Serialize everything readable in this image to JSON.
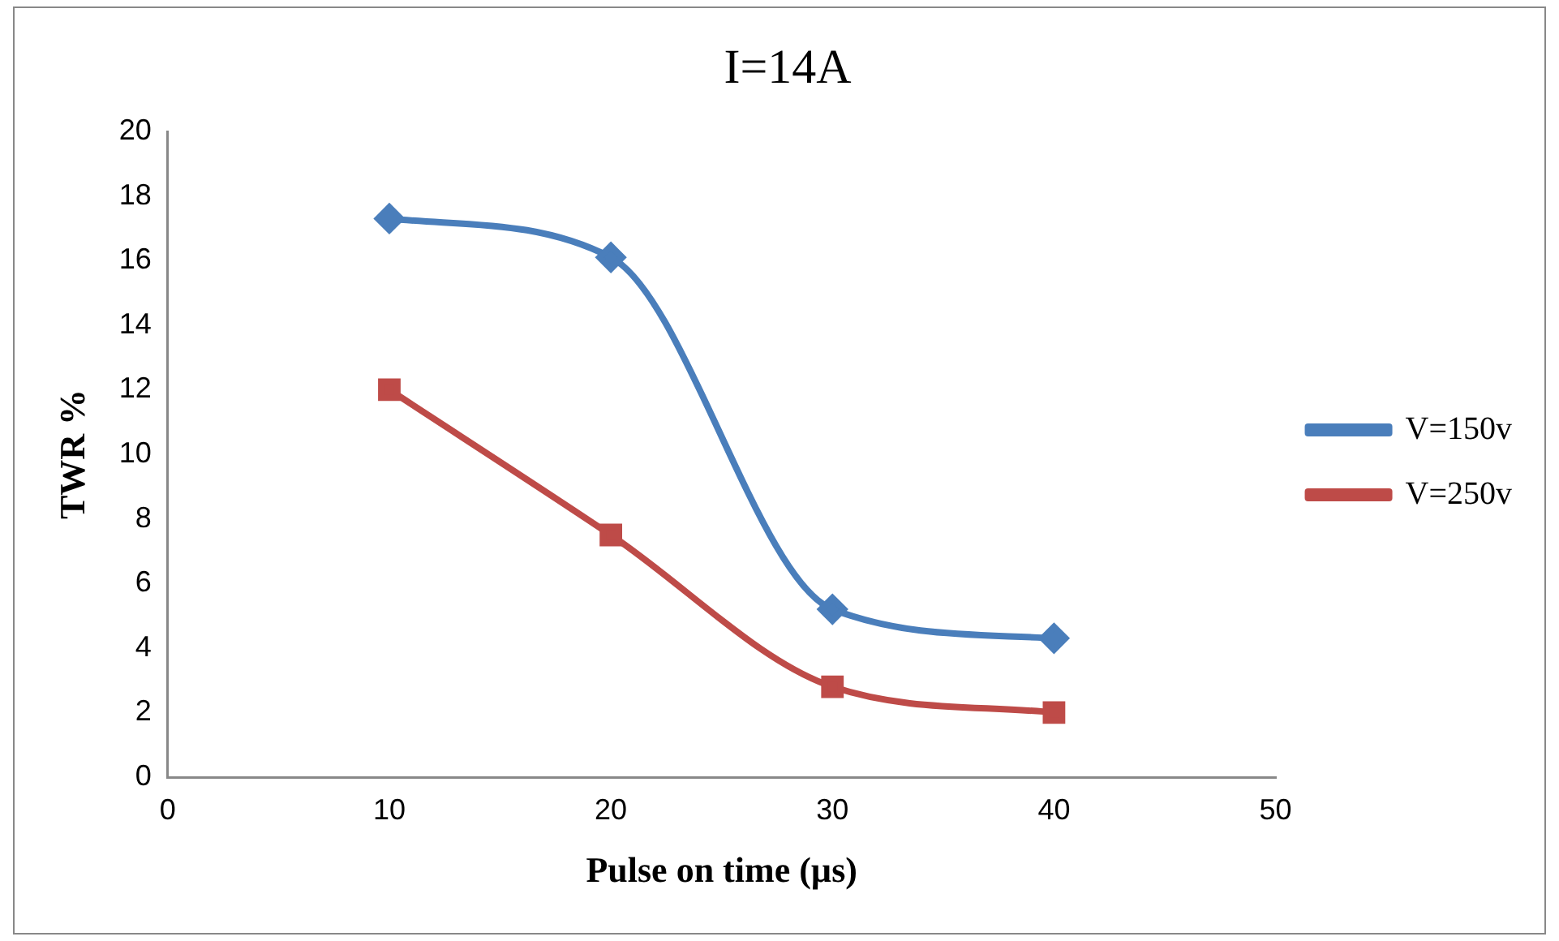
{
  "chart_data": {
    "type": "line",
    "title": "I=14A",
    "xlabel": "Pulse on time (µs)",
    "ylabel": "TWR %",
    "x": [
      10,
      20,
      30,
      40
    ],
    "series": [
      {
        "name": "V=150v",
        "color": "#4a7ebb",
        "values": [
          17.3,
          16.1,
          5.2,
          4.3
        ],
        "marker": "diamond"
      },
      {
        "name": "V=250v",
        "color": "#be4b48",
        "values": [
          12.0,
          7.5,
          2.8,
          2.0
        ],
        "marker": "square"
      }
    ],
    "xlim": [
      0,
      50
    ],
    "xticks": [
      0,
      10,
      20,
      30,
      40,
      50
    ],
    "ylim": [
      0,
      20
    ],
    "yticks": [
      0,
      2,
      4,
      6,
      8,
      10,
      12,
      14,
      16,
      18,
      20
    ],
    "grid": false,
    "legend": "right",
    "line_style": "solid"
  }
}
